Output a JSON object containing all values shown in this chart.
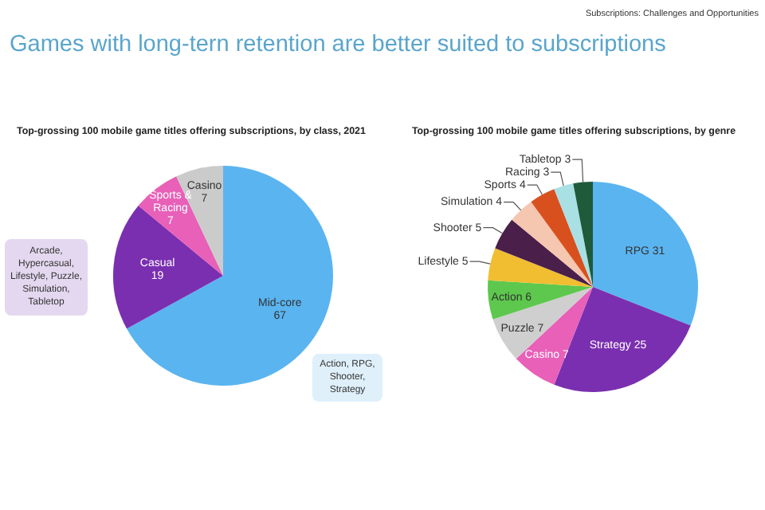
{
  "chart_data": [
    {
      "type": "pie",
      "title": "Top-grossing 100 mobile game titles offering subscriptions, by class, 2021",
      "categories": [
        "Mid-core",
        "Casual",
        "Sports & Racing",
        "Casino"
      ],
      "values": [
        67,
        19,
        7,
        7
      ],
      "colors": [
        "#5ab4f0",
        "#7a2fb0",
        "#e860b8",
        "#cbcbcb"
      ],
      "data_labels": true,
      "legend": false,
      "annotations": [
        "Subscriptions: Challenges and Opportunities",
        "Games with long-tern retention are better suited to subscriptions",
        "Arcade, Hypercasual, Lifestyle, Puzzle, Simulation, Tabletop",
        "Action, RPG, Shooter, Strategy"
      ]
    },
    {
      "type": "pie",
      "title": "Top-grossing 100 mobile game titles offering subscriptions, by genre",
      "categories": [
        "RPG",
        "Strategy",
        "Casino",
        "Puzzle",
        "Action",
        "Lifestyle",
        "Shooter",
        "Simulation",
        "Sports",
        "Racing",
        "Tabletop"
      ],
      "values": [
        31,
        25,
        7,
        7,
        6,
        5,
        5,
        4,
        4,
        3,
        3
      ],
      "colors": [
        "#5ab4f0",
        "#7a2fb0",
        "#e860b8",
        "#cfcfcf",
        "#5dc84d",
        "#f0be30",
        "#4a1f4a",
        "#f5c6b0",
        "#d9501f",
        "#a8e0e4",
        "#1f5a3a"
      ],
      "data_labels": true,
      "legend": false
    }
  ]
}
